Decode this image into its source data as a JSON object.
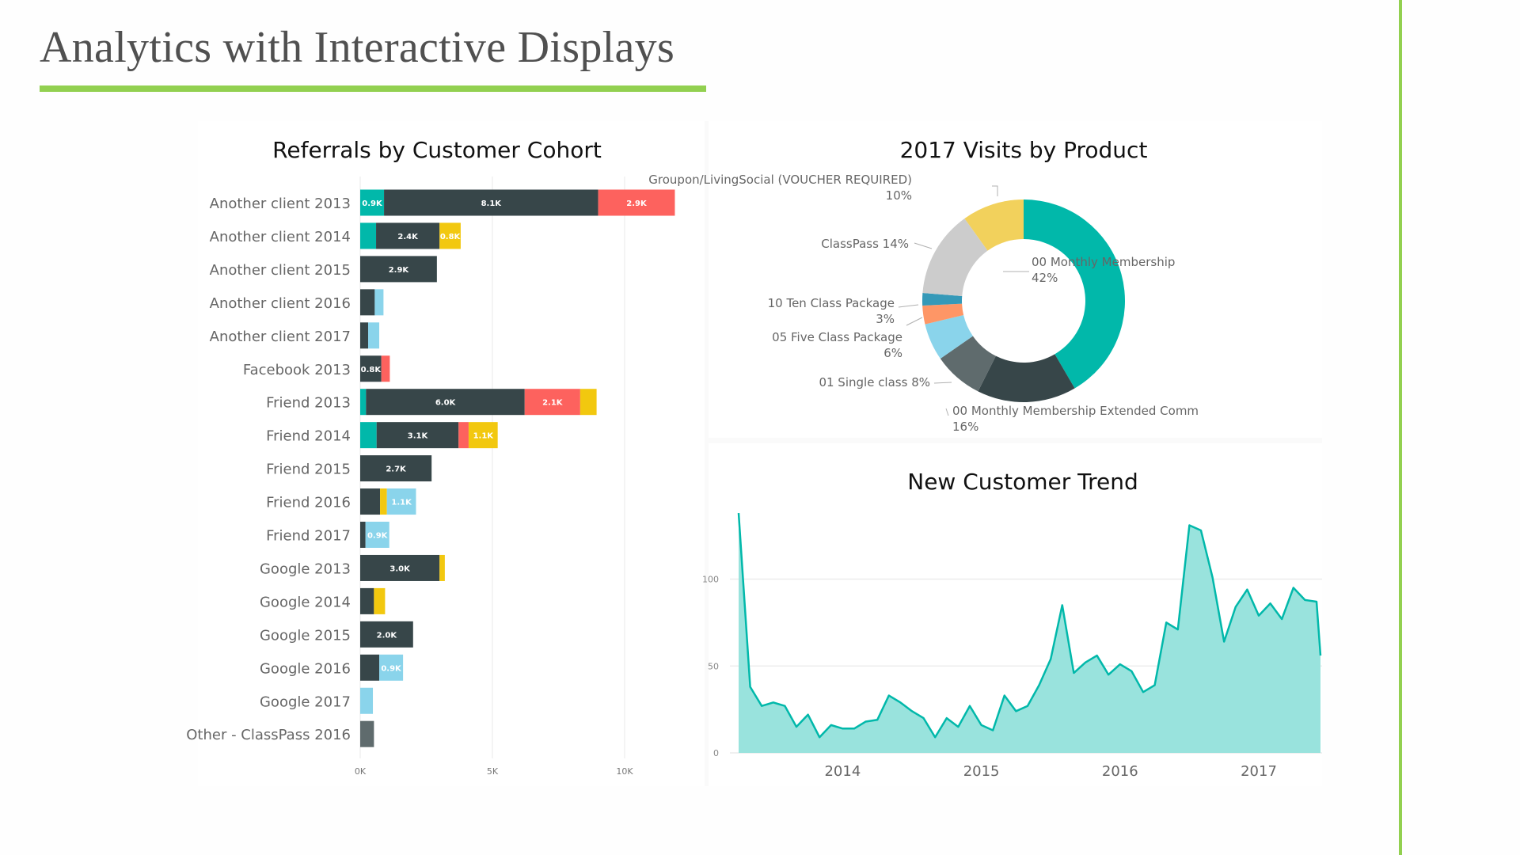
{
  "slide": {
    "title": "Analytics with Interactive Displays",
    "accent_color": "#92d050"
  },
  "chart_data": [
    {
      "type": "bar",
      "orientation": "horizontal-stacked",
      "title": "Referrals by Customer Cohort",
      "xlabel": "",
      "ylabel": "",
      "xlim": [
        0,
        12000
      ],
      "x_ticks": [
        "0K",
        "5K",
        "10K"
      ],
      "x_tick_values": [
        0,
        5000,
        10000
      ],
      "grid": true,
      "segment_colors": [
        "#01b8aa",
        "#374649",
        "#fd625e",
        "#f2c80f",
        "#8ad4eb",
        "#5f6b6d"
      ],
      "categories": [
        "Another client 2013",
        "Another client 2014",
        "Another client 2015",
        "Another client 2016",
        "Another client 2017",
        "Facebook 2013",
        "Friend 2013",
        "Friend 2014",
        "Friend 2015",
        "Friend 2016",
        "Friend 2017",
        "Google 2013",
        "Google 2014",
        "Google 2015",
        "Google 2016",
        "Google 2017",
        "Other - ClassPass 2016"
      ],
      "stacks": [
        [
          {
            "color": "#01b8aa",
            "value": 900,
            "label": "0.9K"
          },
          {
            "color": "#374649",
            "value": 8100,
            "label": "8.1K"
          },
          {
            "color": "#fd625e",
            "value": 2900,
            "label": "2.9K"
          }
        ],
        [
          {
            "color": "#01b8aa",
            "value": 600,
            "label": ""
          },
          {
            "color": "#374649",
            "value": 2400,
            "label": "2.4K"
          },
          {
            "color": "#f2c80f",
            "value": 800,
            "label": "0.8K"
          }
        ],
        [
          {
            "color": "#374649",
            "value": 2900,
            "label": "2.9K"
          }
        ],
        [
          {
            "color": "#374649",
            "value": 550,
            "label": ""
          },
          {
            "color": "#8ad4eb",
            "value": 330,
            "label": ""
          }
        ],
        [
          {
            "color": "#374649",
            "value": 300,
            "label": ""
          },
          {
            "color": "#8ad4eb",
            "value": 420,
            "label": ""
          }
        ],
        [
          {
            "color": "#374649",
            "value": 800,
            "label": "0.8K"
          },
          {
            "color": "#fd625e",
            "value": 320,
            "label": ""
          }
        ],
        [
          {
            "color": "#01b8aa",
            "value": 220,
            "label": ""
          },
          {
            "color": "#374649",
            "value": 6000,
            "label": "6.0K"
          },
          {
            "color": "#fd625e",
            "value": 2100,
            "label": "2.1K"
          },
          {
            "color": "#f2c80f",
            "value": 620,
            "label": ""
          }
        ],
        [
          {
            "color": "#01b8aa",
            "value": 620,
            "label": ""
          },
          {
            "color": "#374649",
            "value": 3100,
            "label": "3.1K"
          },
          {
            "color": "#fd625e",
            "value": 380,
            "label": ""
          },
          {
            "color": "#f2c80f",
            "value": 1100,
            "label": "1.1K"
          }
        ],
        [
          {
            "color": "#374649",
            "value": 2700,
            "label": "2.7K"
          }
        ],
        [
          {
            "color": "#374649",
            "value": 750,
            "label": ""
          },
          {
            "color": "#f2c80f",
            "value": 260,
            "label": ""
          },
          {
            "color": "#8ad4eb",
            "value": 1100,
            "label": "1.1K"
          }
        ],
        [
          {
            "color": "#374649",
            "value": 200,
            "label": ""
          },
          {
            "color": "#8ad4eb",
            "value": 900,
            "label": "0.9K"
          }
        ],
        [
          {
            "color": "#374649",
            "value": 3000,
            "label": "3.0K"
          },
          {
            "color": "#f2c80f",
            "value": 200,
            "label": ""
          }
        ],
        [
          {
            "color": "#374649",
            "value": 520,
            "label": ""
          },
          {
            "color": "#f2c80f",
            "value": 420,
            "label": ""
          }
        ],
        [
          {
            "color": "#374649",
            "value": 2000,
            "label": "2.0K"
          }
        ],
        [
          {
            "color": "#374649",
            "value": 720,
            "label": ""
          },
          {
            "color": "#8ad4eb",
            "value": 900,
            "label": "0.9K"
          }
        ],
        [
          {
            "color": "#8ad4eb",
            "value": 480,
            "label": ""
          }
        ],
        [
          {
            "color": "#5f6b6d",
            "value": 520,
            "label": ""
          }
        ]
      ]
    },
    {
      "type": "pie",
      "variant": "donut",
      "title": "2017 Visits by Product",
      "slices": [
        {
          "name": "00 Monthly Membership",
          "percent": 42,
          "label": "00 Monthly Membership",
          "pct_label": "42%",
          "color": "#01b8aa"
        },
        {
          "name": "00 Monthly Membership Extended Comm",
          "percent": 16,
          "label": "00 Monthly Membership Extended Comm",
          "pct_label": "16%",
          "color": "#374649"
        },
        {
          "name": "01 Single class",
          "percent": 8,
          "label": "01 Single class 8%",
          "pct_label": "",
          "color": "#5f6b6d"
        },
        {
          "name": "05 Five Class Package",
          "percent": 6,
          "label": "05 Five Class Package",
          "pct_label": "6%",
          "color": "#8ad4eb"
        },
        {
          "name": "10 Ten Class Package",
          "percent": 3,
          "label": "10 Ten Class Package",
          "pct_label": "3%",
          "color": "#fe9666"
        },
        {
          "name": "(unlabeled)",
          "percent": 2,
          "label": "",
          "pct_label": "",
          "color": "#3599b8"
        },
        {
          "name": "ClassPass",
          "percent": 14,
          "label": "ClassPass 14%",
          "pct_label": "",
          "color": "#cccccc"
        },
        {
          "name": "Groupon/LivingSocial (VOUCHER REQUIRED)",
          "percent": 10,
          "label": "Groupon/LivingSocial (VOUCHER REQUIRED)",
          "pct_label": "10%",
          "color": "#f2d15c"
        }
      ]
    },
    {
      "type": "area",
      "title": "New Customer Trend",
      "xlabel": "",
      "ylabel": "",
      "ylim": [
        0,
        140
      ],
      "y_ticks": [
        0,
        50,
        100
      ],
      "x_ticks": [
        "2014",
        "2015",
        "2016",
        "2017"
      ],
      "x_start": "2013-04",
      "x_unit": "month",
      "grid": true,
      "color": "#01b8aa",
      "fill": "#99e3dd",
      "values": [
        138,
        38,
        27,
        29,
        27,
        15,
        22,
        9,
        16,
        14,
        14,
        18,
        19,
        33,
        29,
        24,
        20,
        9,
        20,
        15,
        27,
        16,
        13,
        33,
        24,
        27,
        39,
        54,
        85,
        46,
        52,
        56,
        45,
        51,
        47,
        35,
        39,
        75,
        71,
        131,
        128,
        101,
        64,
        84,
        94,
        79,
        86,
        77,
        95,
        88,
        87,
        56
      ]
    }
  ]
}
